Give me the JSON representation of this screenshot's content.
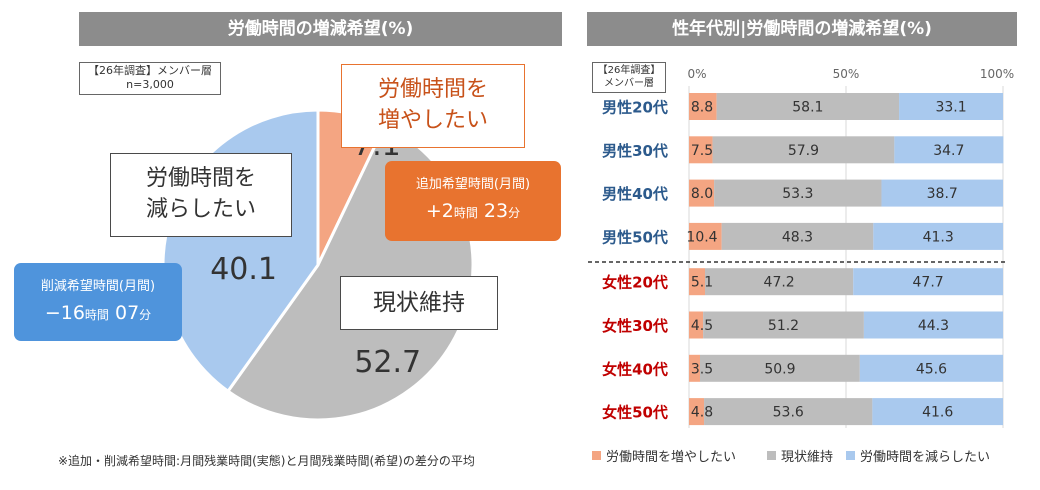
{
  "left_panel": {
    "title": "労働時間の増減希望(%)",
    "survey_label_1": "【26年調査】メンバー層",
    "survey_label_2": "n=3,000",
    "callout_increase_1": "労働時間を",
    "callout_increase_2": "増やしたい",
    "callout_decrease_1": "労働時間を",
    "callout_decrease_2": "減らしたい",
    "callout_maintain": "現状維持",
    "bubble_add_title": "追加希望時間(月間)",
    "bubble_add_prefix": "+2",
    "bubble_add_unit1": "時間",
    "bubble_add_min": " 23",
    "bubble_add_unit2": "分",
    "bubble_cut_title": "削減希望時間(月間)",
    "bubble_cut_prefix": "−16",
    "bubble_cut_unit1": "時間",
    "bubble_cut_min": " 07",
    "bubble_cut_unit2": "分",
    "footnote": "※追加・削減希望時間:月間残業時間(実態)と月間残業時間(希望)の差分の平均"
  },
  "right_panel": {
    "title": "性年代別|労働時間の増減希望(%)",
    "survey_label_1": "【26年調査】",
    "survey_label_2": "メンバー層"
  },
  "colors": {
    "increase": "#f4a582",
    "maintain": "#bdbdbd",
    "decrease": "#a9c9ee",
    "male_label": "#2c5a8c",
    "female_label": "#c00000"
  },
  "chart_data": [
    {
      "type": "pie",
      "labels": [
        "労働時間を増やしたい",
        "現状維持",
        "労働時間を減らしたい"
      ],
      "values": [
        7.1,
        52.7,
        40.1
      ],
      "value_labels": [
        "7.1",
        "52.7",
        "40.1"
      ],
      "title": "労働時間の増減希望(%)"
    },
    {
      "type": "bar",
      "orientation": "horizontal",
      "stacked": true,
      "categories": [
        "男性20代",
        "男性30代",
        "男性40代",
        "男性50代",
        "女性20代",
        "女性30代",
        "女性40代",
        "女性50代"
      ],
      "category_groups": [
        "male",
        "male",
        "male",
        "male",
        "female",
        "female",
        "female",
        "female"
      ],
      "series": [
        {
          "name": "労働時間を増やしたい",
          "values": [
            8.8,
            7.5,
            8.0,
            10.4,
            5.1,
            4.5,
            3.5,
            4.8
          ]
        },
        {
          "name": "現状維持",
          "values": [
            58.1,
            57.9,
            53.3,
            48.3,
            47.2,
            51.2,
            50.9,
            53.6
          ]
        },
        {
          "name": "労働時間を減らしたい",
          "values": [
            33.1,
            34.7,
            38.7,
            41.3,
            47.7,
            44.3,
            45.6,
            41.6
          ]
        }
      ],
      "value_labels": [
        [
          "8.8",
          "7.5",
          "8.0",
          "10.4",
          "5.1",
          "4.5",
          "3.5",
          "4.8"
        ],
        [
          "58.1",
          "57.9",
          "53.3",
          "48.3",
          "47.2",
          "51.2",
          "50.9",
          "53.6"
        ],
        [
          "33.1",
          "34.7",
          "38.7",
          "41.3",
          "47.7",
          "44.3",
          "45.6",
          "41.6"
        ]
      ],
      "x_ticks": [
        "0%",
        "50%",
        "100%"
      ],
      "xlim": [
        0,
        100
      ],
      "legend_position": "bottom",
      "title": "性年代別|労働時間の増減希望(%)"
    }
  ]
}
